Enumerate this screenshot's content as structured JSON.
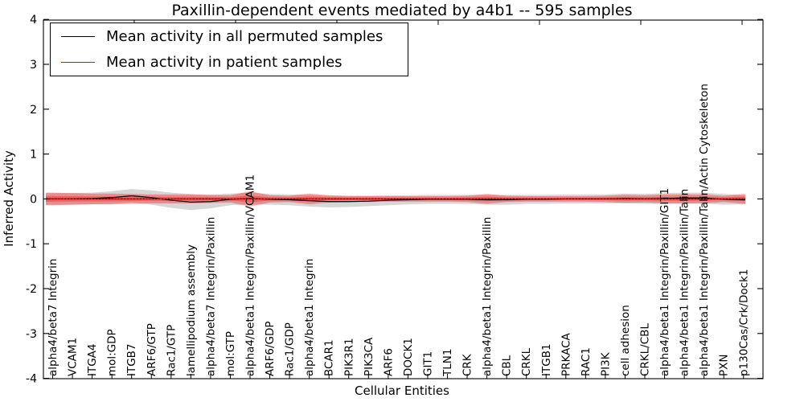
{
  "title": "Paxillin-dependent events mediated by a4b1 -- 595 samples",
  "legend": {
    "items": [
      {
        "label": "Mean activity in all permuted samples",
        "color": "#000000"
      },
      {
        "label": "Mean activity in patient samples",
        "color": "#ff0000"
      }
    ]
  },
  "chart_data": {
    "type": "line",
    "title": "Paxillin-dependent events mediated by a4b1 -- 595 samples",
    "xlabel": "Cellular Entities",
    "ylabel": "Inferred Activity",
    "ylim": [
      -4,
      4
    ],
    "yticks": [
      -4,
      -3,
      -2,
      -1,
      0,
      1,
      2,
      3,
      4
    ],
    "grid": false,
    "legend_position": "upper left",
    "zero_reference_line": 0,
    "colors": {
      "permuted_line": "#000000",
      "patient_line": "#ff0000",
      "permuted_band": "rgba(0,0,0,0.16)",
      "patient_band": "rgba(255,0,0,0.33)",
      "frame": "#000000",
      "background": "#ffffff"
    },
    "categories": [
      "alpha4/beta7 Integrin",
      "VCAM1",
      "ITGA4",
      "mol:GDP",
      "ITGB7",
      "ARF6/GTP",
      "Rac1/GTP",
      "lamellipodium assembly",
      "alpha4/beta7 Integrin/Paxillin",
      "mol:GTP",
      "alpha4/beta1 Integrin/Paxillin/VCAM1",
      "ARF6/GDP",
      "Rac1/GDP",
      "alpha4/beta1 Integrin",
      "BCAR1",
      "PIK3R1",
      "PIK3CA",
      "ARF6",
      "DOCK1",
      "GIT1",
      "TLN1",
      "CRK",
      "alpha4/beta1 Integrin/Paxillin",
      "CBL",
      "CRKL",
      "ITGB1",
      "PRKACA",
      "RAC1",
      "PI3K",
      "cell adhesion",
      "CRKL/CBL",
      "alpha4/beta1 Integrin/Paxillin/GIT1",
      "alpha4/beta1 Integrin/Paxillin/Talin",
      "alpha4/beta1 Integrin/Paxillin/Talin/Actin Cytoskeleton",
      "PXN",
      "p130Cas/Crk/Dock1"
    ],
    "series": [
      {
        "name": "Mean activity in all permuted samples",
        "color": "#000000",
        "band_color": "rgba(0,0,0,0.16)",
        "values": [
          0.0,
          0.0,
          0.01,
          0.03,
          0.07,
          0.03,
          -0.03,
          -0.07,
          -0.06,
          -0.01,
          0.01,
          -0.01,
          -0.02,
          -0.04,
          -0.06,
          -0.06,
          -0.05,
          -0.03,
          -0.02,
          -0.01,
          -0.01,
          -0.01,
          -0.02,
          -0.02,
          -0.01,
          -0.01,
          0.0,
          0.0,
          0.0,
          0.01,
          0.0,
          0.01,
          0.02,
          0.02,
          -0.01,
          -0.02
        ],
        "band_halfwidth": [
          0.13,
          0.13,
          0.13,
          0.14,
          0.15,
          0.16,
          0.17,
          0.18,
          0.15,
          0.13,
          0.13,
          0.12,
          0.12,
          0.13,
          0.13,
          0.12,
          0.11,
          0.11,
          0.1,
          0.1,
          0.1,
          0.1,
          0.11,
          0.11,
          0.1,
          0.1,
          0.1,
          0.1,
          0.1,
          0.11,
          0.11,
          0.12,
          0.12,
          0.12,
          0.12,
          0.1
        ]
      },
      {
        "name": "Mean activity in patient samples",
        "color": "#ff0000",
        "band_color": "rgba(255,0,0,0.33)",
        "values": [
          0,
          0,
          0,
          0,
          0,
          0,
          0,
          0,
          0,
          0,
          0,
          0,
          0,
          0,
          0,
          0,
          0,
          0,
          0,
          0,
          0,
          0,
          0,
          0,
          0,
          0,
          0,
          0,
          0,
          0,
          0,
          0,
          0,
          0,
          0,
          0
        ],
        "band_halfwidth": [
          0.14,
          0.13,
          0.12,
          0.12,
          0.11,
          0.1,
          0.1,
          0.1,
          0.09,
          0.08,
          0.17,
          0.08,
          0.07,
          0.12,
          0.08,
          0.07,
          0.07,
          0.06,
          0.06,
          0.06,
          0.06,
          0.07,
          0.11,
          0.07,
          0.06,
          0.06,
          0.06,
          0.06,
          0.07,
          0.09,
          0.08,
          0.1,
          0.1,
          0.1,
          0.07,
          0.11
        ]
      }
    ]
  }
}
